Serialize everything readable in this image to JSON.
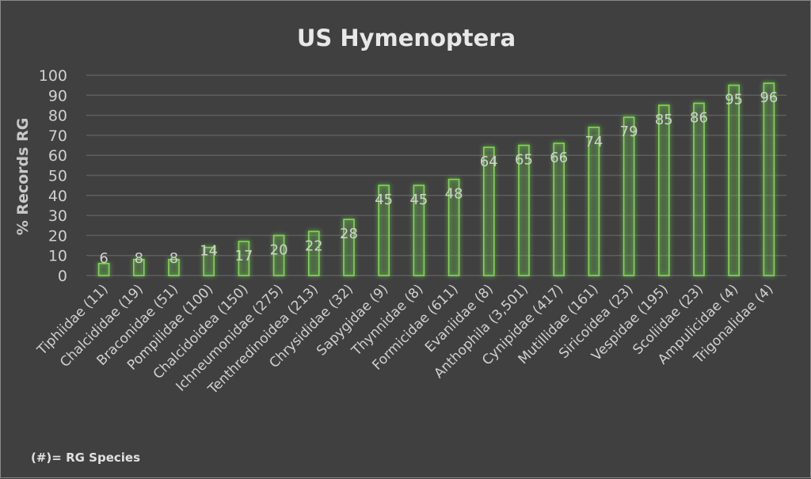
{
  "chart_data": {
    "type": "bar",
    "title": "US Hymenoptera",
    "xlabel": "",
    "ylabel": "% Records RG",
    "ylim": [
      0,
      100
    ],
    "yticks": [
      0,
      10,
      20,
      30,
      40,
      50,
      60,
      70,
      80,
      90,
      100
    ],
    "grid": true,
    "categories": [
      "Tiphiidae (11)",
      "Chalcididae (19)",
      "Braconidae (51)",
      "Pompilidae (100)",
      "Chalcidoidea (150)",
      "Ichneumonidae (275)",
      "Tenthredinoidea (213)",
      "Chrysididae (32)",
      "Sapygidae (9)",
      "Thynnidae (8)",
      "Formicidae (611)",
      "Evaniidae (8)",
      "Anthophila (3,501)",
      "Cynipidae (417)",
      "Mutillidae (161)",
      "Siricoidea (23)",
      "Vespidae (195)",
      "Scoliidae (23)",
      "Ampulicidae (4)",
      "Trigonalidae (4)"
    ],
    "values": [
      6,
      8,
      8,
      14,
      17,
      20,
      22,
      28,
      45,
      45,
      48,
      64,
      65,
      66,
      74,
      79,
      85,
      86,
      95,
      96
    ],
    "footnote": "(#)= RG Species",
    "bar_color": "#7ed957"
  }
}
